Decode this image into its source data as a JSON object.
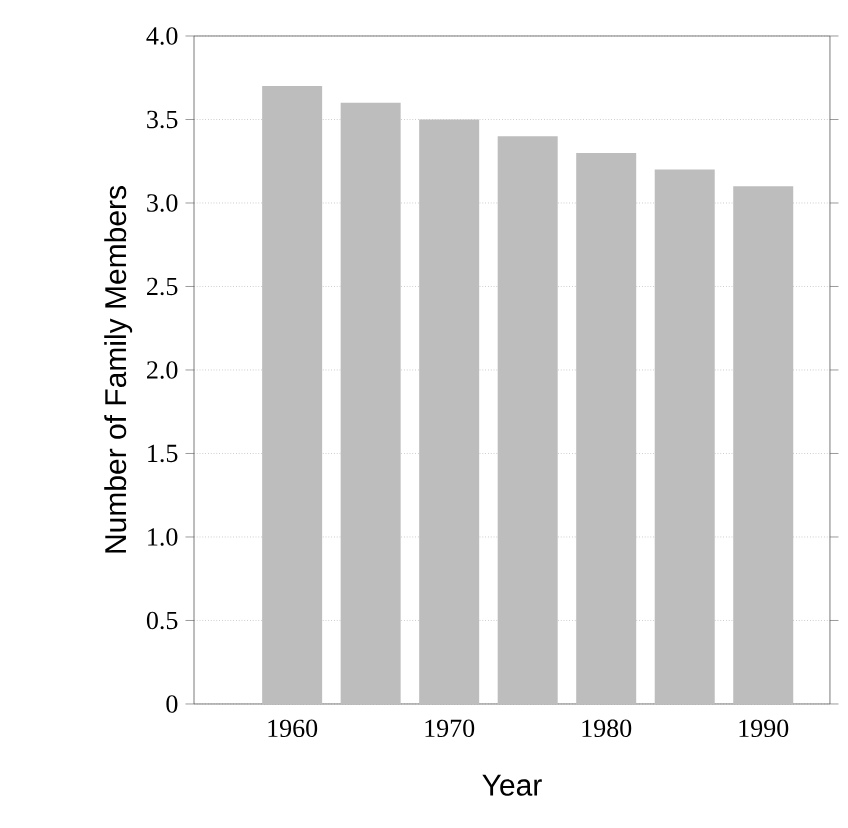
{
  "chart_data": {
    "type": "bar",
    "xlabel": "Year",
    "ylabel": "Number of Family Members",
    "categories": [
      "1960",
      null,
      "1970",
      null,
      "1980",
      null,
      "1990"
    ],
    "values": [
      3.7,
      3.6,
      3.5,
      3.4,
      3.3,
      3.2,
      3.1
    ],
    "color": "#bdbdbd",
    "ylim": [
      0,
      4
    ],
    "yticks": [
      0,
      0.5,
      {
        "value": 1,
        "label": "1.0"
      },
      1.5,
      {
        "value": 2,
        "label": "2.0"
      },
      2.5,
      {
        "value": 3,
        "label": "3.0"
      },
      3.5,
      {
        "value": 4,
        "label": "4.0"
      }
    ],
    "grid": "y"
  }
}
